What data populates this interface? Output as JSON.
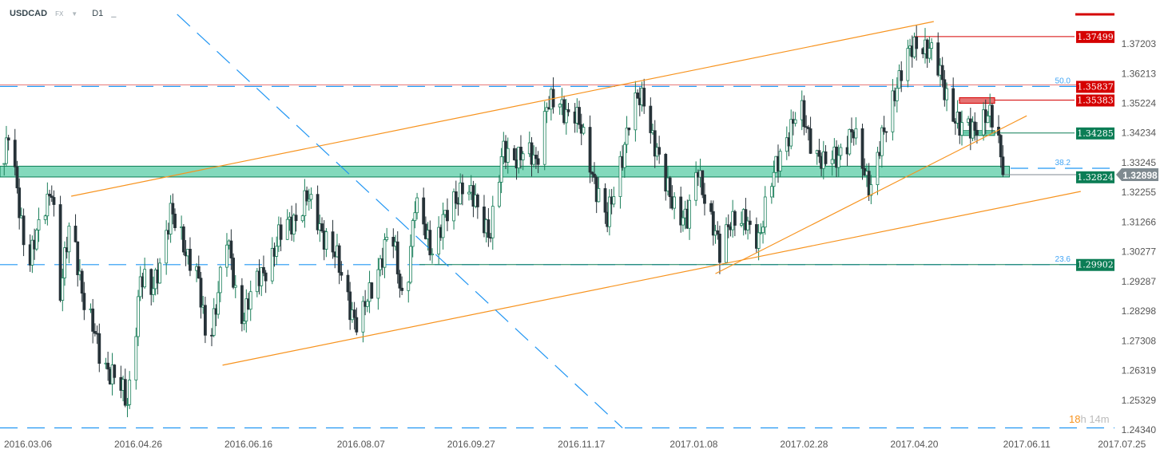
{
  "header": {
    "symbol": "USDCAD",
    "market": "FX",
    "timeframe": "D1"
  },
  "countdown": {
    "hours": "18h",
    "minutes": "14m"
  },
  "colors": {
    "up": "#1a7f5a",
    "down": "#263238",
    "zone": "#4fc9a0",
    "orange": "#f7931e",
    "blue": "#2196f3",
    "red": "#d50000",
    "green": "#0b7d55",
    "current": "#7f8a90"
  },
  "chart_data": {
    "type": "candlestick",
    "symbol": "USDCAD",
    "ylim": [
      1.2434,
      1.377
    ],
    "y_ticks": [
      "1.37203",
      "1.36213",
      "1.35224",
      "1.34234",
      "1.33245",
      "1.32255",
      "1.31266",
      "1.30277",
      "1.29287",
      "1.28298",
      "1.27308",
      "1.26319",
      "1.25329",
      "1.24340"
    ],
    "x_ticks": [
      "2016.03.06",
      "2016.04.26",
      "2016.06.16",
      "2016.08.07",
      "2016.09.27",
      "2016.11.17",
      "2017.01.08",
      "2017.02.28",
      "2017.04.20",
      "2017.06.11",
      "2017.07.25"
    ],
    "close_path": [
      [
        "2016-02-24",
        1.3327
      ],
      [
        "2016-02-26",
        1.342
      ],
      [
        "2016-03-06",
        1.2995
      ],
      [
        "2016-03-11",
        1.3101
      ],
      [
        "2016-03-17",
        1.3261
      ],
      [
        "2016-03-21",
        1.2889
      ],
      [
        "2016-03-26",
        1.3154
      ],
      [
        "2016-04-01",
        1.2862
      ],
      [
        "2016-04-08",
        1.2703
      ],
      [
        "2016-04-14",
        1.2623
      ],
      [
        "2016-04-21",
        1.253
      ],
      [
        "2016-04-27",
        1.2942
      ],
      [
        "2016-05-02",
        1.2889
      ],
      [
        "2016-05-11",
        1.3154
      ],
      [
        "2016-05-23",
        1.2968
      ],
      [
        "2016-05-28",
        1.2703
      ],
      [
        "2016-06-06",
        1.3075
      ],
      [
        "2016-06-12",
        1.2809
      ],
      [
        "2016-06-23",
        1.2968
      ],
      [
        "2016-06-30",
        1.3075
      ],
      [
        "2016-07-13",
        1.3208
      ],
      [
        "2016-07-26",
        1.3021
      ],
      [
        "2016-08-06",
        1.2769
      ],
      [
        "2016-08-14",
        1.2968
      ],
      [
        "2016-08-21",
        1.3101
      ],
      [
        "2016-08-27",
        1.2849
      ],
      [
        "2016-09-01",
        1.3181
      ],
      [
        "2016-09-09",
        1.3048
      ],
      [
        "2016-09-23",
        1.3261
      ],
      [
        "2016-10-06",
        1.3101
      ],
      [
        "2016-10-12",
        1.3367
      ],
      [
        "2016-10-27",
        1.334
      ],
      [
        "2016-11-01",
        1.3526
      ],
      [
        "2016-11-14",
        1.35
      ],
      [
        "2016-11-29",
        1.3128
      ],
      [
        "2016-12-10",
        1.35
      ],
      [
        "2016-12-16",
        1.3553
      ],
      [
        "2016-12-25",
        1.3261
      ],
      [
        "2017-01-05",
        1.3128
      ],
      [
        "2017-01-10",
        1.3314
      ],
      [
        "2017-01-20",
        1.3021
      ],
      [
        "2017-01-25",
        1.3154
      ],
      [
        "2017-02-07",
        1.3088
      ],
      [
        "2017-02-18",
        1.3394
      ],
      [
        "2017-02-26",
        1.35
      ],
      [
        "2017-03-09",
        1.3314
      ],
      [
        "2017-03-23",
        1.342
      ],
      [
        "2017-03-31",
        1.3247
      ],
      [
        "2017-04-11",
        1.358
      ],
      [
        "2017-04-22",
        1.3752
      ],
      [
        "2017-04-28",
        1.3686
      ],
      [
        "2017-05-03",
        1.3606
      ],
      [
        "2017-05-11",
        1.3433
      ],
      [
        "2017-05-22",
        1.3473
      ],
      [
        "2017-05-28",
        1.3473
      ],
      [
        "2017-05-31",
        1.329
      ]
    ],
    "current_price": "1.32898",
    "price_labels": [
      {
        "value": "1.37499",
        "color": "red"
      },
      {
        "value": "1.35837",
        "color": "red"
      },
      {
        "value": "1.35383",
        "color": "red"
      },
      {
        "value": "1.34285",
        "color": "green"
      },
      {
        "value": "1.32824",
        "color": "green"
      },
      {
        "value": "1.29902",
        "color": "green"
      }
    ],
    "fibonacci": [
      {
        "level": "50.0",
        "price": 1.35837
      },
      {
        "level": "38.2",
        "price": 1.3311
      },
      {
        "level": "23.6",
        "price": 1.299
      }
    ],
    "horizontal_lines": [
      {
        "price": 1.2446,
        "style": "dashed",
        "color": "blue"
      }
    ],
    "support_zone": {
      "from": 1.3282,
      "to": 1.3318,
      "end": "2017-06-03"
    },
    "trendlines": [
      {
        "color": "orange",
        "start": [
          "2016-03-26",
          1.3218
        ],
        "end": [
          "2017-04-29",
          1.38
        ]
      },
      {
        "color": "orange",
        "start": [
          "2016-06-04",
          1.2655
        ],
        "end": [
          "2017-07-06",
          1.3234
        ]
      },
      {
        "color": "orange",
        "start": [
          "2017-01-18",
          1.296
        ],
        "end": [
          "2017-06-11",
          1.3486
        ]
      },
      {
        "color": "blue",
        "style": "dashed",
        "start": [
          "2016-05-14",
          1.3824
        ],
        "end": [
          "2016-12-06",
          1.2446
        ]
      }
    ]
  }
}
